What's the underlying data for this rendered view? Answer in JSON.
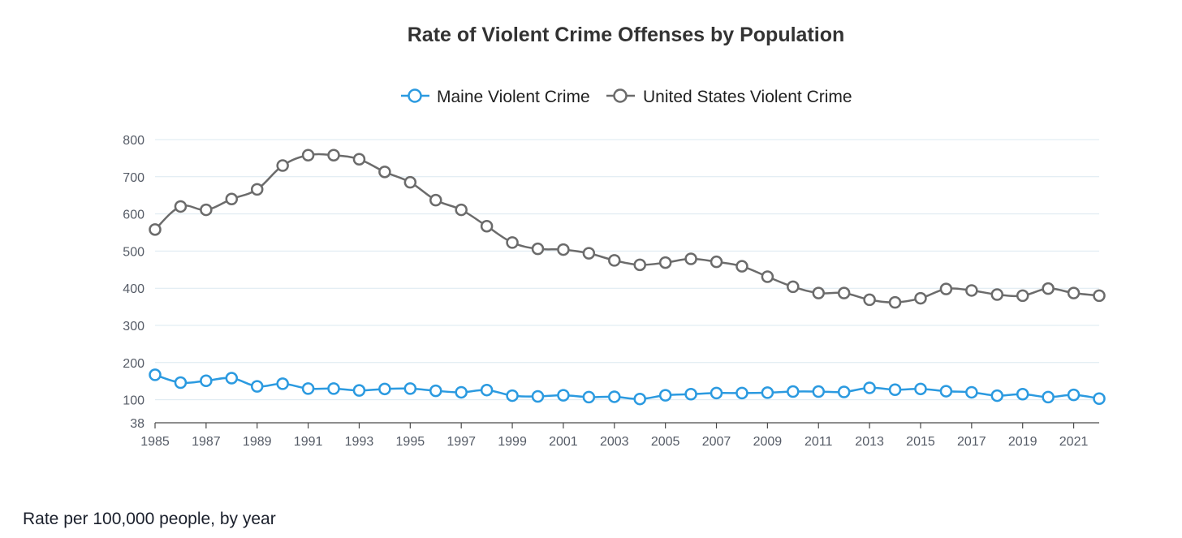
{
  "caption": "Rate per 100,000 people, by year",
  "chart_data": {
    "type": "line",
    "title": "Rate of Violent Crime Offenses by Population",
    "xlabel": "",
    "ylabel": "",
    "ylim": [
      38,
      800
    ],
    "yticks": [
      38,
      100,
      200,
      300,
      400,
      500,
      600,
      700,
      800
    ],
    "xlim": [
      1985,
      2022
    ],
    "xticks": [
      1985,
      1987,
      1989,
      1991,
      1993,
      1995,
      1997,
      1999,
      2001,
      2003,
      2005,
      2007,
      2009,
      2011,
      2013,
      2015,
      2017,
      2019,
      2021
    ],
    "legend_position": "top-center",
    "grid": true,
    "x": [
      1985,
      1986,
      1987,
      1988,
      1989,
      1990,
      1991,
      1992,
      1993,
      1994,
      1995,
      1996,
      1997,
      1998,
      1999,
      2000,
      2001,
      2002,
      2003,
      2004,
      2005,
      2006,
      2007,
      2008,
      2009,
      2010,
      2011,
      2012,
      2013,
      2014,
      2015,
      2016,
      2017,
      2018,
      2019,
      2020,
      2021,
      2022
    ],
    "series": [
      {
        "name": "Maine Violent Crime",
        "color": "#2b9ae0",
        "values": [
          167,
          146,
          151,
          158,
          136,
          143,
          130,
          130,
          125,
          129,
          130,
          124,
          120,
          126,
          111,
          109,
          112,
          107,
          108,
          102,
          112,
          115,
          118,
          118,
          119,
          122,
          122,
          121,
          132,
          127,
          129,
          123,
          120,
          111,
          115,
          107,
          113,
          103
        ]
      },
      {
        "name": "United States Violent Crime",
        "color": "#6b6b6b",
        "values": [
          558,
          620,
          611,
          640,
          666,
          730,
          758,
          758,
          747,
          713,
          685,
          637,
          611,
          567,
          523,
          506,
          504,
          494,
          475,
          463,
          469,
          479,
          471,
          459,
          431,
          404,
          387,
          387,
          369,
          362,
          373,
          398,
          394,
          383,
          380,
          399,
          387,
          380
        ]
      }
    ]
  }
}
